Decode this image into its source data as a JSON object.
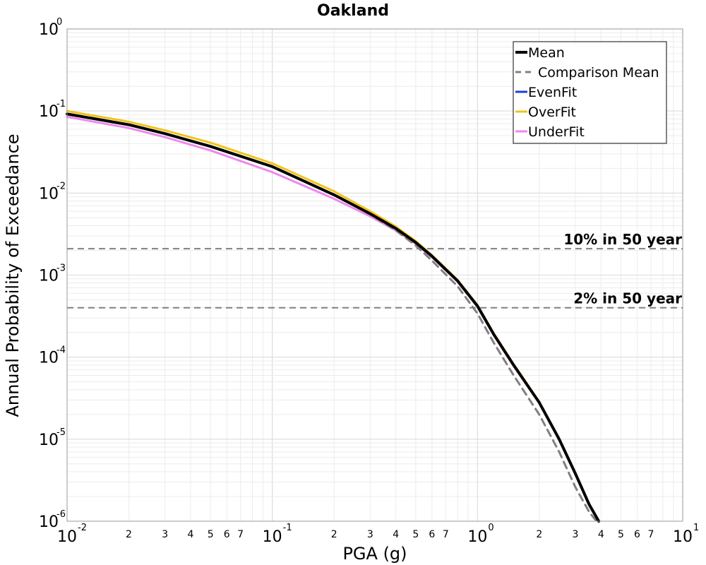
{
  "chart_data": {
    "type": "line",
    "title": "Oakland",
    "xlabel": "PGA (g)",
    "ylabel": "Annual Probability of Exceedance",
    "xscale": "log",
    "yscale": "log",
    "xlim": [
      0.01,
      10
    ],
    "ylim": [
      1e-06,
      1
    ],
    "grid": true,
    "legend_position": "top-right",
    "x_major_ticks": [
      {
        "value": 0.01,
        "base": "10",
        "exp": "-2"
      },
      {
        "value": 0.1,
        "base": "10",
        "exp": "-1"
      },
      {
        "value": 1,
        "base": "10",
        "exp": "0"
      },
      {
        "value": 10,
        "base": "10",
        "exp": "1"
      }
    ],
    "x_minor_tick_labels": [
      "2",
      "3",
      "4",
      "5",
      "6",
      "7"
    ],
    "y_major_ticks": [
      {
        "value": 1,
        "base": "10",
        "exp": "0"
      },
      {
        "value": 0.1,
        "base": "10",
        "exp": "-1"
      },
      {
        "value": 0.01,
        "base": "10",
        "exp": "-2"
      },
      {
        "value": 0.001,
        "base": "10",
        "exp": "-3"
      },
      {
        "value": 0.0001,
        "base": "10",
        "exp": "-4"
      },
      {
        "value": 1e-05,
        "base": "10",
        "exp": "-5"
      },
      {
        "value": 1e-06,
        "base": "10",
        "exp": "-6"
      }
    ],
    "series": [
      {
        "name": "Mean",
        "color": "#000000",
        "dash": "solid",
        "x": [
          0.01,
          0.02,
          0.03,
          0.05,
          0.1,
          0.2,
          0.3,
          0.4,
          0.5,
          0.6,
          0.8,
          1.0,
          1.2,
          1.5,
          2.0,
          2.5,
          3.0,
          3.5,
          3.9
        ],
        "y": [
          0.092,
          0.068,
          0.053,
          0.037,
          0.021,
          0.0095,
          0.0056,
          0.0037,
          0.0025,
          0.0017,
          0.00085,
          0.00042,
          0.00019,
          8e-05,
          2.8e-05,
          1e-05,
          3.8e-06,
          1.6e-06,
          1e-06
        ]
      },
      {
        "name": "Comparison Mean",
        "color": "#808080",
        "dash": "dashed",
        "x": [
          0.2,
          0.3,
          0.4,
          0.5,
          0.6,
          0.8,
          1.0,
          1.2,
          1.5,
          2.0,
          2.5,
          3.0,
          3.5,
          3.8
        ],
        "y": [
          0.0095,
          0.0055,
          0.0035,
          0.0023,
          0.0015,
          0.00073,
          0.00034,
          0.00015,
          6e-05,
          2e-05,
          7e-06,
          2.6e-06,
          1.3e-06,
          1e-06
        ]
      },
      {
        "name": "EvenFit",
        "color": "#1f3fd6",
        "dash": "solid",
        "x": [
          0.01,
          0.02,
          0.03,
          0.05,
          0.1,
          0.2,
          0.3,
          0.4,
          0.5,
          0.6,
          0.8,
          1.0,
          1.2,
          1.5,
          2.0,
          2.5,
          3.0,
          3.5,
          3.9
        ],
        "y": [
          0.092,
          0.068,
          0.053,
          0.037,
          0.021,
          0.0095,
          0.0056,
          0.0037,
          0.0025,
          0.0017,
          0.00085,
          0.00042,
          0.00019,
          8e-05,
          2.8e-05,
          1e-05,
          3.8e-06,
          1.6e-06,
          1e-06
        ]
      },
      {
        "name": "OverFit",
        "color": "#f0c419",
        "dash": "solid",
        "x": [
          0.01,
          0.02,
          0.03,
          0.05,
          0.1,
          0.2,
          0.3,
          0.4,
          0.5,
          0.6,
          0.8,
          1.0,
          1.2,
          1.5,
          2.0,
          2.5,
          3.0,
          3.5,
          3.9
        ],
        "y": [
          0.1,
          0.074,
          0.058,
          0.041,
          0.023,
          0.0105,
          0.006,
          0.0039,
          0.0026,
          0.00175,
          0.00087,
          0.00043,
          0.000195,
          8.2e-05,
          2.85e-05,
          1.02e-05,
          3.85e-06,
          1.62e-06,
          1e-06
        ]
      },
      {
        "name": "UnderFit",
        "color": "#ee88ee",
        "dash": "solid",
        "x": [
          0.01,
          0.02,
          0.03,
          0.05,
          0.1,
          0.2,
          0.3,
          0.4,
          0.5,
          0.6,
          0.8,
          1.0,
          1.2,
          1.5,
          2.0,
          2.5,
          3.0,
          3.5,
          3.9
        ],
        "y": [
          0.085,
          0.062,
          0.048,
          0.033,
          0.018,
          0.0085,
          0.0052,
          0.0035,
          0.0024,
          0.00165,
          0.00083,
          0.00041,
          0.000185,
          7.8e-05,
          2.75e-05,
          9.8e-06,
          3.75e-06,
          1.58e-06,
          1e-06
        ]
      }
    ],
    "reference_lines": [
      {
        "label": "10% in 50 year",
        "y": 0.0021,
        "color": "#808080",
        "dash": "dashed"
      },
      {
        "label": "2% in 50 year",
        "y": 0.0004,
        "color": "#808080",
        "dash": "dashed"
      }
    ]
  }
}
